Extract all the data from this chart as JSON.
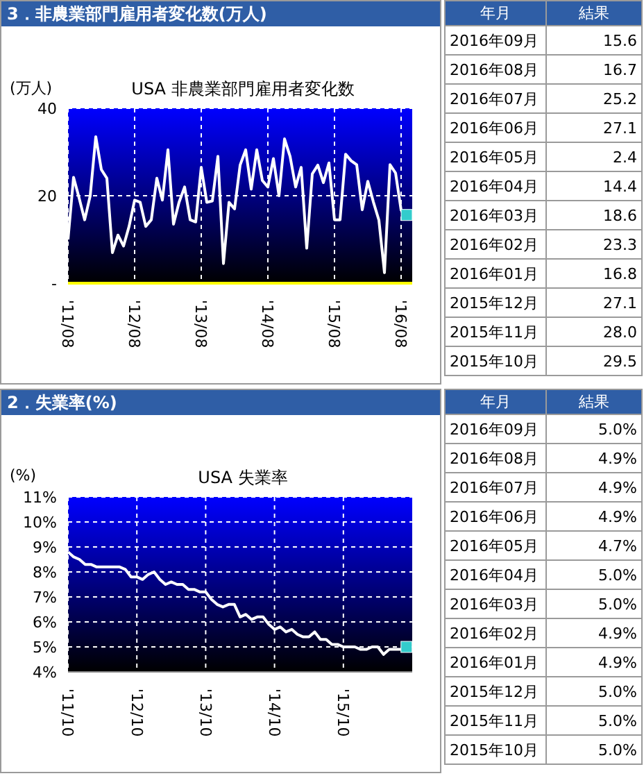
{
  "chart_data": [
    {
      "type": "line",
      "title": "3．非農業部門雇用者変化数(万人)",
      "subtitle": "USA 非農業部門雇用者変化数",
      "ylabel": "(万人)",
      "xlim": [
        "2011-08",
        "2016-10"
      ],
      "xticks": [
        {
          "value": "2011-08",
          "label": "'11/08"
        },
        {
          "value": "2012-08",
          "label": "'12/08"
        },
        {
          "value": "2013-08",
          "label": "'13/08"
        },
        {
          "value": "2014-08",
          "label": "'14/08"
        },
        {
          "value": "2015-08",
          "label": "'15/08"
        },
        {
          "value": "2016-08",
          "label": "'16/08"
        }
      ],
      "ylim": [
        0,
        40
      ],
      "yticks": [
        {
          "value": 0,
          "label": "-"
        },
        20,
        40
      ],
      "grid": true,
      "series": [
        {
          "color": "#ffffff",
          "marker": "none",
          "line_style": "solid",
          "x": [
            "2011-08",
            "2011-09",
            "2011-10",
            "2011-11",
            "2011-12",
            "2012-01",
            "2012-02",
            "2012-03",
            "2012-04",
            "2012-05",
            "2012-06",
            "2012-07",
            "2012-08",
            "2012-09",
            "2012-10",
            "2012-11",
            "2012-12",
            "2013-01",
            "2013-02",
            "2013-03",
            "2013-04",
            "2013-05",
            "2013-06",
            "2013-07",
            "2013-08",
            "2013-09",
            "2013-10",
            "2013-11",
            "2013-12",
            "2014-01",
            "2014-02",
            "2014-03",
            "2014-04",
            "2014-05",
            "2014-06",
            "2014-07",
            "2014-08",
            "2014-09",
            "2014-10",
            "2014-11",
            "2014-12",
            "2015-01",
            "2015-02",
            "2015-03",
            "2015-04",
            "2015-05",
            "2015-06",
            "2015-07",
            "2015-08",
            "2015-09",
            "2015-10",
            "2015-11",
            "2015-12",
            "2016-01",
            "2016-02",
            "2016-03",
            "2016-04",
            "2016-05",
            "2016-06",
            "2016-07",
            "2016-08",
            "2016-09"
          ],
          "values": [
            10.0,
            24.2,
            19.5,
            14.5,
            20.0,
            33.5,
            26.0,
            24.0,
            7.0,
            11.0,
            8.5,
            13.0,
            19.0,
            18.5,
            13.0,
            14.5,
            24.0,
            19.0,
            30.5,
            13.5,
            18.5,
            22.0,
            14.5,
            14.0,
            26.5,
            18.5,
            18.8,
            29.0,
            4.5,
            18.5,
            17.0,
            27.0,
            30.5,
            21.5,
            30.5,
            23.5,
            22.0,
            28.5,
            20.0,
            33.0,
            29.0,
            22.0,
            26.5,
            8.0,
            25.0,
            27.0,
            23.0,
            27.5,
            14.5,
            14.5,
            29.5,
            28.0,
            27.1,
            16.8,
            23.3,
            18.6,
            14.4,
            2.4,
            27.1,
            25.2,
            16.7,
            15.6
          ]
        },
        {
          "type": "scatter",
          "color": "#33cccc",
          "marker": "square",
          "x": [
            "2016-09"
          ],
          "values": [
            15.6
          ]
        }
      ],
      "annotations": [
        "年月",
        "結果",
        "2016年09月",
        "15.6",
        "2016年08月",
        "16.7",
        "2016年07月",
        "25.2",
        "2016年06月",
        "27.1",
        "2016年05月",
        "2.4",
        "2016年04月",
        "14.4",
        "2016年03月",
        "18.6",
        "2016年02月",
        "23.3",
        "2016年01月",
        "16.8",
        "2015年12月",
        "27.1",
        "2015年11月",
        "28.0",
        "2015年10月",
        "29.5"
      ]
    },
    {
      "type": "line",
      "title": "2．失業率(%)",
      "subtitle": "USA 失業率",
      "ylabel": "(%)",
      "xlim": [
        "2011-10",
        "2016-10"
      ],
      "xticks": [
        {
          "value": "2011-10",
          "label": "'11/10"
        },
        {
          "value": "2012-10",
          "label": "'12/10"
        },
        {
          "value": "2013-10",
          "label": "'13/10"
        },
        {
          "value": "2014-10",
          "label": "'14/10"
        },
        {
          "value": "2015-10",
          "label": "'15/10"
        }
      ],
      "ylim": [
        4,
        11
      ],
      "yticks": [
        {
          "value": 4,
          "label": "4%"
        },
        {
          "value": 5,
          "label": "5%"
        },
        {
          "value": 6,
          "label": "6%"
        },
        {
          "value": 7,
          "label": "7%"
        },
        {
          "value": 8,
          "label": "8%"
        },
        {
          "value": 9,
          "label": "9%"
        },
        {
          "value": 10,
          "label": "10%"
        },
        {
          "value": 11,
          "label": "11%"
        }
      ],
      "grid": true,
      "series": [
        {
          "color": "#ffffff",
          "marker": "none",
          "line_style": "solid",
          "x": [
            "2011-10",
            "2011-11",
            "2011-12",
            "2012-01",
            "2012-02",
            "2012-03",
            "2012-04",
            "2012-05",
            "2012-06",
            "2012-07",
            "2012-08",
            "2012-09",
            "2012-10",
            "2012-11",
            "2012-12",
            "2013-01",
            "2013-02",
            "2013-03",
            "2013-04",
            "2013-05",
            "2013-06",
            "2013-07",
            "2013-08",
            "2013-09",
            "2013-10",
            "2013-11",
            "2013-12",
            "2014-01",
            "2014-02",
            "2014-03",
            "2014-04",
            "2014-05",
            "2014-06",
            "2014-07",
            "2014-08",
            "2014-09",
            "2014-10",
            "2014-11",
            "2014-12",
            "2015-01",
            "2015-02",
            "2015-03",
            "2015-04",
            "2015-05",
            "2015-06",
            "2015-07",
            "2015-08",
            "2015-09",
            "2015-10",
            "2015-11",
            "2015-12",
            "2016-01",
            "2016-02",
            "2016-03",
            "2016-04",
            "2016-05",
            "2016-06",
            "2016-07",
            "2016-08",
            "2016-09"
          ],
          "values": [
            8.8,
            8.6,
            8.5,
            8.3,
            8.3,
            8.2,
            8.2,
            8.2,
            8.2,
            8.2,
            8.1,
            7.8,
            7.8,
            7.7,
            7.9,
            8.0,
            7.7,
            7.5,
            7.6,
            7.5,
            7.5,
            7.3,
            7.3,
            7.2,
            7.2,
            6.9,
            6.7,
            6.6,
            6.7,
            6.7,
            6.2,
            6.3,
            6.1,
            6.2,
            6.2,
            5.9,
            5.7,
            5.8,
            5.6,
            5.7,
            5.5,
            5.4,
            5.4,
            5.6,
            5.3,
            5.3,
            5.1,
            5.1,
            5.0,
            5.0,
            5.0,
            4.9,
            4.9,
            5.0,
            5.0,
            4.7,
            4.9,
            4.9,
            4.9,
            5.0
          ]
        },
        {
          "type": "scatter",
          "color": "#33cccc",
          "marker": "square",
          "x": [
            "2016-09"
          ],
          "values": [
            5.0
          ]
        }
      ],
      "annotations": [
        "年月",
        "結果",
        "2016年09月",
        "5.0%",
        "2016年08月",
        "4.9%",
        "2016年07月",
        "4.9%",
        "2016年06月",
        "4.9%",
        "2016年05月",
        "4.7%",
        "2016年04月",
        "5.0%",
        "2016年03月",
        "5.0%",
        "2016年02月",
        "4.9%",
        "2016年01月",
        "4.9%",
        "2015年12月",
        "5.0%",
        "2015年11月",
        "5.0%",
        "2015年10月",
        "5.0%"
      ]
    }
  ]
}
